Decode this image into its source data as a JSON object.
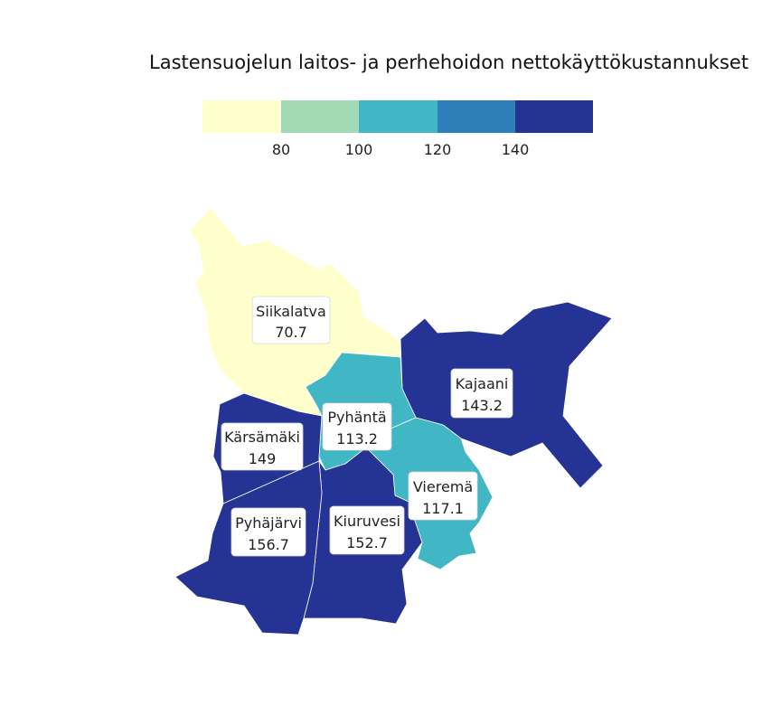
{
  "title": "Lastensuojelun laitos- ja perhehoidon nettokäyttökustannukset",
  "legend": {
    "colors": [
      "#ffffcc",
      "#a1dab4",
      "#41b6c4",
      "#2c7fb8",
      "#253494"
    ],
    "ticks": [
      "80",
      "100",
      "120",
      "140"
    ]
  },
  "regions": [
    {
      "name": "Siikalatva",
      "value": "70.7",
      "numeric": 70.7,
      "color": "#ffffcc"
    },
    {
      "name": "Kajaani",
      "value": "143.2",
      "numeric": 143.2,
      "color": "#253494"
    },
    {
      "name": "Pyhäntä",
      "value": "113.2",
      "numeric": 113.2,
      "color": "#41b6c4"
    },
    {
      "name": "Kärsämäki",
      "value": "149",
      "numeric": 149,
      "color": "#253494"
    },
    {
      "name": "Vieremä",
      "value": "117.1",
      "numeric": 117.1,
      "color": "#41b6c4"
    },
    {
      "name": "Pyhäjärvi",
      "value": "156.7",
      "numeric": 156.7,
      "color": "#253494"
    },
    {
      "name": "Kiuruvesi",
      "value": "152.7",
      "numeric": 152.7,
      "color": "#253494"
    }
  ]
}
